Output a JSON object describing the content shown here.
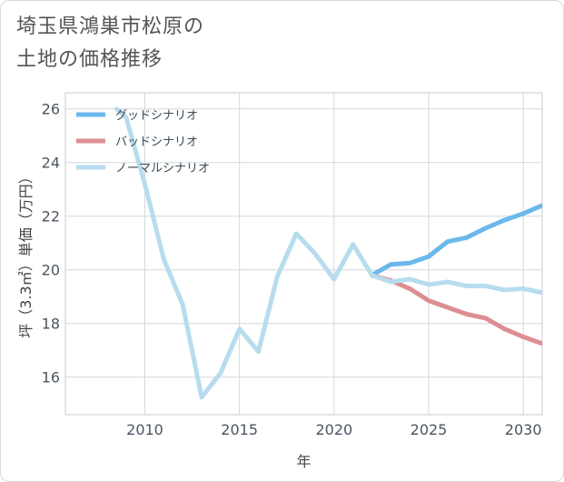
{
  "title": {
    "line1": "埼玉県鴻巣市松原の",
    "line2": "土地の価格推移"
  },
  "chart_data": {
    "type": "line",
    "xlabel": "年",
    "ylabel": "坪（3.3㎡）単価（万円）",
    "xlim": [
      2005.8,
      2031
    ],
    "ylim": [
      14.6,
      26.6
    ],
    "x_ticks": [
      2010,
      2015,
      2020,
      2025,
      2030
    ],
    "y_ticks": [
      16,
      18,
      20,
      22,
      24,
      26
    ],
    "grid": true,
    "legend_position": "top-left",
    "series": [
      {
        "name": "グッドシナリオ",
        "color": "#6bb8ec",
        "x": [
          2022,
          2023,
          2024,
          2025,
          2026,
          2027,
          2028,
          2029,
          2030,
          2031
        ],
        "y": [
          19.8,
          20.2,
          20.25,
          20.5,
          21.05,
          21.2,
          21.55,
          21.85,
          22.1,
          22.4
        ]
      },
      {
        "name": "バッドシナリオ",
        "color": "#de8e92",
        "x": [
          2022,
          2023,
          2024,
          2025,
          2026,
          2027,
          2028,
          2029,
          2030,
          2031
        ],
        "y": [
          19.8,
          19.6,
          19.3,
          18.85,
          18.6,
          18.35,
          18.2,
          17.8,
          17.5,
          17.25
        ]
      },
      {
        "name": "ノーマルシナリオ",
        "color": "#b7dcee",
        "x": [
          2008.5,
          2009,
          2010,
          2011,
          2012,
          2013,
          2014,
          2015,
          2016,
          2017,
          2018,
          2019,
          2020,
          2021,
          2022,
          2023,
          2024,
          2025,
          2026,
          2027,
          2028,
          2029,
          2030,
          2031
        ],
        "y": [
          26.0,
          25.7,
          23.2,
          20.4,
          18.7,
          15.25,
          16.15,
          17.8,
          16.95,
          19.75,
          21.35,
          20.6,
          19.65,
          20.95,
          19.8,
          19.55,
          19.65,
          19.45,
          19.55,
          19.4,
          19.4,
          19.25,
          19.3,
          19.15
        ]
      }
    ]
  }
}
